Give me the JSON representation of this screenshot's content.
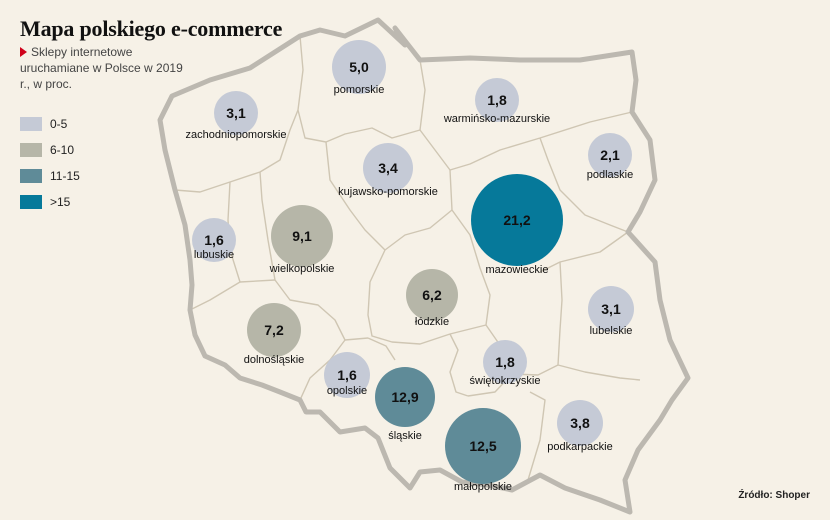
{
  "title": "Mapa polskiego e-commerce",
  "subtitle": "Sklepy internetowe uruchamiane w Polsce w 2019 r., w proc.",
  "legend": [
    {
      "label": "0-5",
      "color": "#c5cad6"
    },
    {
      "label": "6-10",
      "color": "#b6b6a8"
    },
    {
      "label": "11-15",
      "color": "#5f8b98"
    },
    {
      "label": ">15",
      "color": "#06799a"
    }
  ],
  "source": "Źródło: Shoper",
  "regions": [
    {
      "name": "pomorskie",
      "value": "5,0",
      "class": 0
    },
    {
      "name": "zachodniopomorskie",
      "value": "3,1",
      "class": 0
    },
    {
      "name": "warmińsko-mazurskie",
      "value": "1,8",
      "class": 0
    },
    {
      "name": "podlaskie",
      "value": "2,1",
      "class": 0
    },
    {
      "name": "kujawsko-pomorskie",
      "value": "3,4",
      "class": 0
    },
    {
      "name": "lubuskie",
      "value": "1,6",
      "class": 0
    },
    {
      "name": "wielkopolskie",
      "value": "9,1",
      "class": 1
    },
    {
      "name": "mazowieckie",
      "value": "21,2",
      "class": 3
    },
    {
      "name": "łódzkie",
      "value": "6,2",
      "class": 1
    },
    {
      "name": "dolnośląskie",
      "value": "7,2",
      "class": 1
    },
    {
      "name": "lubelskie",
      "value": "3,1",
      "class": 0
    },
    {
      "name": "opolskie",
      "value": "1,6",
      "class": 0
    },
    {
      "name": "śląskie",
      "value": "12,9",
      "class": 2
    },
    {
      "name": "świętokrzyskie",
      "value": "1,8",
      "class": 0
    },
    {
      "name": "małopolskie",
      "value": "12,5",
      "class": 2
    },
    {
      "name": "podkarpackie",
      "value": "3,8",
      "class": 0
    }
  ]
}
